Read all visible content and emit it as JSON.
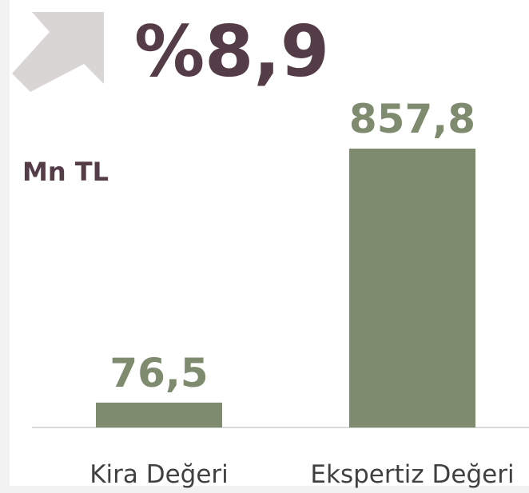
{
  "chart_data": {
    "type": "bar",
    "annotation": "%8,9",
    "unit_label": "Mn TL",
    "categories": [
      "Kira Değeri",
      "Ekspertiz Değeri"
    ],
    "values": [
      76.5,
      857.8
    ],
    "value_labels": [
      "76,5",
      "857,8"
    ],
    "color": "#7f8b6f"
  }
}
